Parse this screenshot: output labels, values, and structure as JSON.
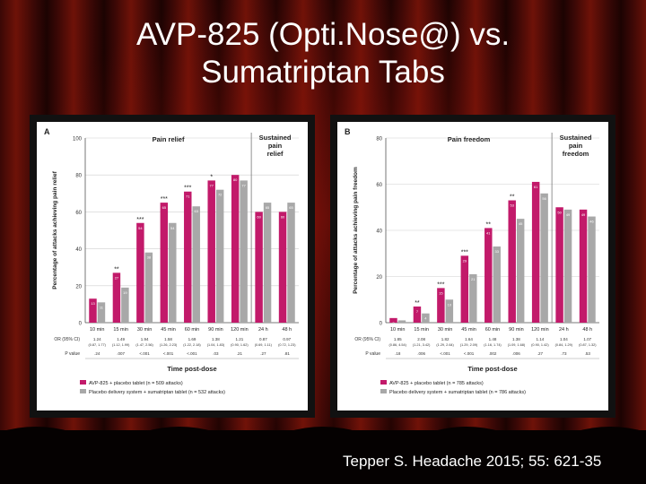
{
  "slide": {
    "title_line1": "AVP-825 (Opti.Nose@) vs.",
    "title_line2": "Sumatriptan Tabs",
    "citation": "Tepper S. Headache 2015; 55: 621-35"
  },
  "colors": {
    "avp": "#c21a6a",
    "placebo": "#a8a8a8",
    "grid": "#cfcfcf"
  },
  "chart_data": [
    {
      "type": "bar",
      "panel_label": "A",
      "section_title": "Pain relief",
      "sustained_title": [
        "Sustained",
        "pain",
        "relief"
      ],
      "ylabel": "Percentage of attacks achieving pain relief",
      "xlabel": "Time post-dose",
      "ylim": [
        0,
        100
      ],
      "yticks": [
        0,
        20,
        40,
        60,
        80,
        100
      ],
      "categories": [
        "10 min",
        "15 min",
        "30 min",
        "45 min",
        "60 min",
        "90 min",
        "120 min",
        "24 h",
        "48 h"
      ],
      "series": [
        {
          "name": "AVP-825 + placebo tablet (n = 509 attacks)",
          "values": [
            13,
            27,
            54,
            65,
            71,
            77,
            80,
            60,
            60
          ]
        },
        {
          "name": "Placebo delivery system + sumatriptan tablet (n = 532 attacks)",
          "values": [
            11,
            19,
            38,
            54,
            63,
            72,
            77,
            65,
            65
          ]
        }
      ],
      "significance": [
        "",
        "**",
        "***",
        "***",
        "***",
        "*",
        "",
        "",
        ""
      ],
      "stats": {
        "or_label": "OR (95% CI)",
        "p_label": "P value",
        "or": [
          "1.24",
          "1.49",
          "1.94",
          "1.58",
          "1.69",
          "1.38",
          "1.21",
          "0.87",
          "0.97"
        ],
        "ci": [
          "(0.87, 1.77)",
          "(1.12, 1.99)",
          "(1.47, 2.56)",
          "(1.26, 2.23)",
          "(1.22, 2.18)",
          "(1.04, 1.83)",
          "(0.90, 1.62)",
          "(0.69, 1.11)",
          "(0.72, 1.23)"
        ],
        "p": [
          ".24",
          ".007",
          "<.001",
          "<.001",
          "<.001",
          ".03",
          ".21",
          ".27",
          ".81"
        ]
      }
    },
    {
      "type": "bar",
      "panel_label": "B",
      "section_title": "Pain freedom",
      "sustained_title": [
        "Sustained",
        "pain",
        "freedom"
      ],
      "ylabel": "Percentage of attacks achieving pain freedom",
      "xlabel": "Time post-dose",
      "ylim": [
        0,
        80
      ],
      "yticks": [
        0,
        20,
        40,
        60,
        80
      ],
      "categories": [
        "10 min",
        "15 min",
        "30 min",
        "45 min",
        "60 min",
        "90 min",
        "120 min",
        "24 h",
        "48 h"
      ],
      "series": [
        {
          "name": "AVP-825 + placebo tablet (n = 785 attacks)",
          "values": [
            2,
            7,
            15,
            29,
            41,
            53,
            61,
            50,
            49
          ]
        },
        {
          "name": "Placebo delivery system + sumatriptan tablet (n = 786 attacks)",
          "values": [
            1,
            4,
            10,
            21,
            33,
            45,
            56,
            49,
            46
          ]
        }
      ],
      "significance": [
        "",
        "**",
        "***",
        "***",
        "**",
        "**",
        "",
        "",
        ""
      ],
      "stats": {
        "or_label": "OR (95% CI)",
        "p_label": "P value",
        "or": [
          "1.85",
          "2.08",
          "1.82",
          "1.64",
          "1.48",
          "1.38",
          "1.14",
          "1.04",
          "1.07"
        ],
        "ci": [
          "(0.86, 4.54)",
          "(1.21, 3.42)",
          "(1.29, 2.64)",
          "(1.29, 2.09)",
          "(1.16, 1.74)",
          "(1.09, 1.68)",
          "(0.90, 1.42)",
          "(0.84, 1.29)",
          "(0.87, 1.32)"
        ],
        "p": [
          ".18",
          ".006",
          "<.001",
          "<.001",
          ".002",
          ".006",
          ".27",
          ".73",
          ".53"
        ]
      }
    }
  ]
}
